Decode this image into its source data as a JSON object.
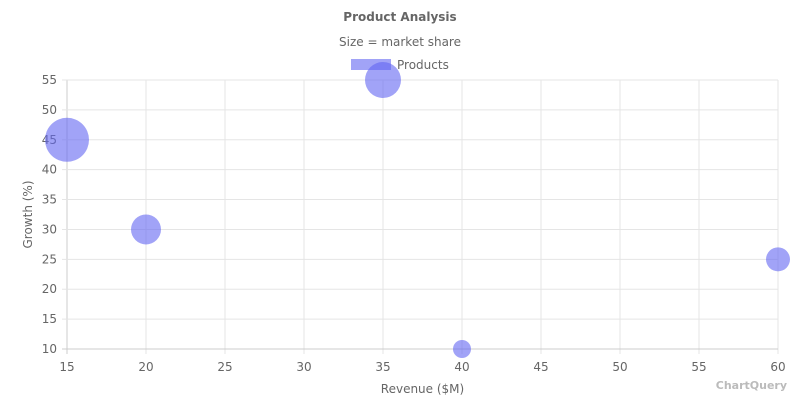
{
  "chart": {
    "title": "Product Analysis",
    "subtitle": "Size = market share",
    "legend_label": "Products",
    "watermark": "ChartQuery",
    "colors": {
      "bubble": "#6366f1",
      "grid": "#e5e5e5",
      "axis": "#cccccc",
      "text": "#666666"
    }
  },
  "chart_data": {
    "type": "bubble",
    "title": "Product Analysis",
    "subtitle": "Size = market share",
    "xlabel": "Revenue ($M)",
    "ylabel": "Growth (%)",
    "xlim": [
      15,
      60
    ],
    "ylim": [
      10,
      55
    ],
    "x_ticks": [
      15,
      20,
      25,
      30,
      35,
      40,
      45,
      50,
      55,
      60
    ],
    "y_ticks": [
      10,
      15,
      20,
      25,
      30,
      35,
      40,
      45,
      50,
      55
    ],
    "grid": true,
    "legend_position": "top",
    "series": [
      {
        "name": "Products",
        "points": [
          {
            "x": 15,
            "y": 45,
            "r": 22
          },
          {
            "x": 20,
            "y": 30,
            "r": 15
          },
          {
            "x": 35,
            "y": 55,
            "r": 18
          },
          {
            "x": 40,
            "y": 10,
            "r": 9
          },
          {
            "x": 60,
            "y": 25,
            "r": 12
          }
        ]
      }
    ]
  }
}
